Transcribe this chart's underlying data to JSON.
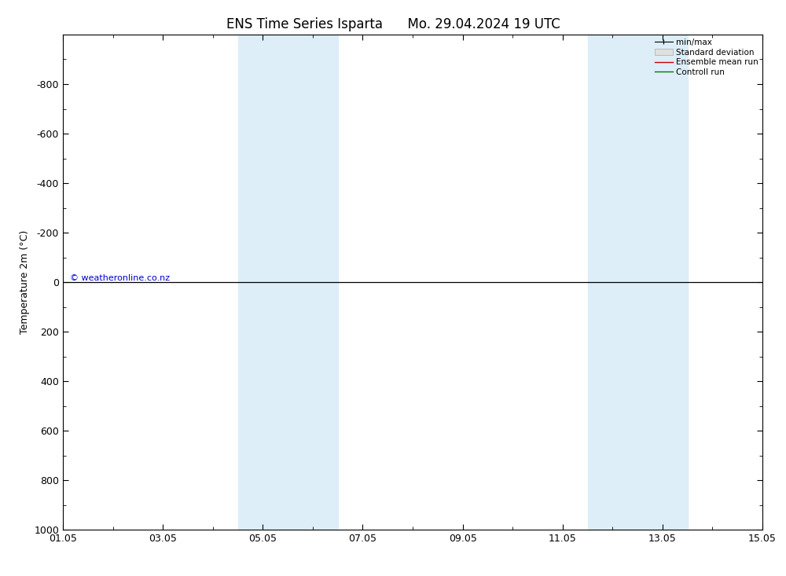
{
  "title": "ENS Time Series Isparta",
  "subtitle": "Mo. 29.04.2024 19 UTC",
  "ylabel": "Temperature 2m (°C)",
  "ylim_bottom": 1000,
  "ylim_top": -1000,
  "yticks": [
    -800,
    -600,
    -400,
    -200,
    0,
    200,
    400,
    600,
    800,
    1000
  ],
  "xlim": [
    0,
    14
  ],
  "xtick_labels": [
    "01.05",
    "03.05",
    "05.05",
    "07.05",
    "09.05",
    "11.05",
    "13.05",
    "15.05"
  ],
  "xtick_positions": [
    0,
    2,
    4,
    6,
    8,
    10,
    12,
    14
  ],
  "shaded_bands": [
    {
      "x_start": 3.5,
      "x_end": 5.5
    },
    {
      "x_start": 10.5,
      "x_end": 12.5
    }
  ],
  "band_color": "#ddeef8",
  "hline_y": 0,
  "hline_color": "#000000",
  "background_color": "#ffffff",
  "plot_bg_color": "#ffffff",
  "legend_items": [
    {
      "label": "min/max",
      "color": "#000000",
      "type": "errbar"
    },
    {
      "label": "Standard deviation",
      "color": "#cccccc",
      "type": "fill"
    },
    {
      "label": "Ensemble mean run",
      "color": "#cc0000",
      "type": "line"
    },
    {
      "label": "Controll run",
      "color": "#007700",
      "type": "line"
    }
  ],
  "copyright_text": "© weatheronline.co.nz",
  "copyright_color": "#0000cc",
  "title_fontsize": 12,
  "axis_fontsize": 9,
  "tick_fontsize": 9
}
